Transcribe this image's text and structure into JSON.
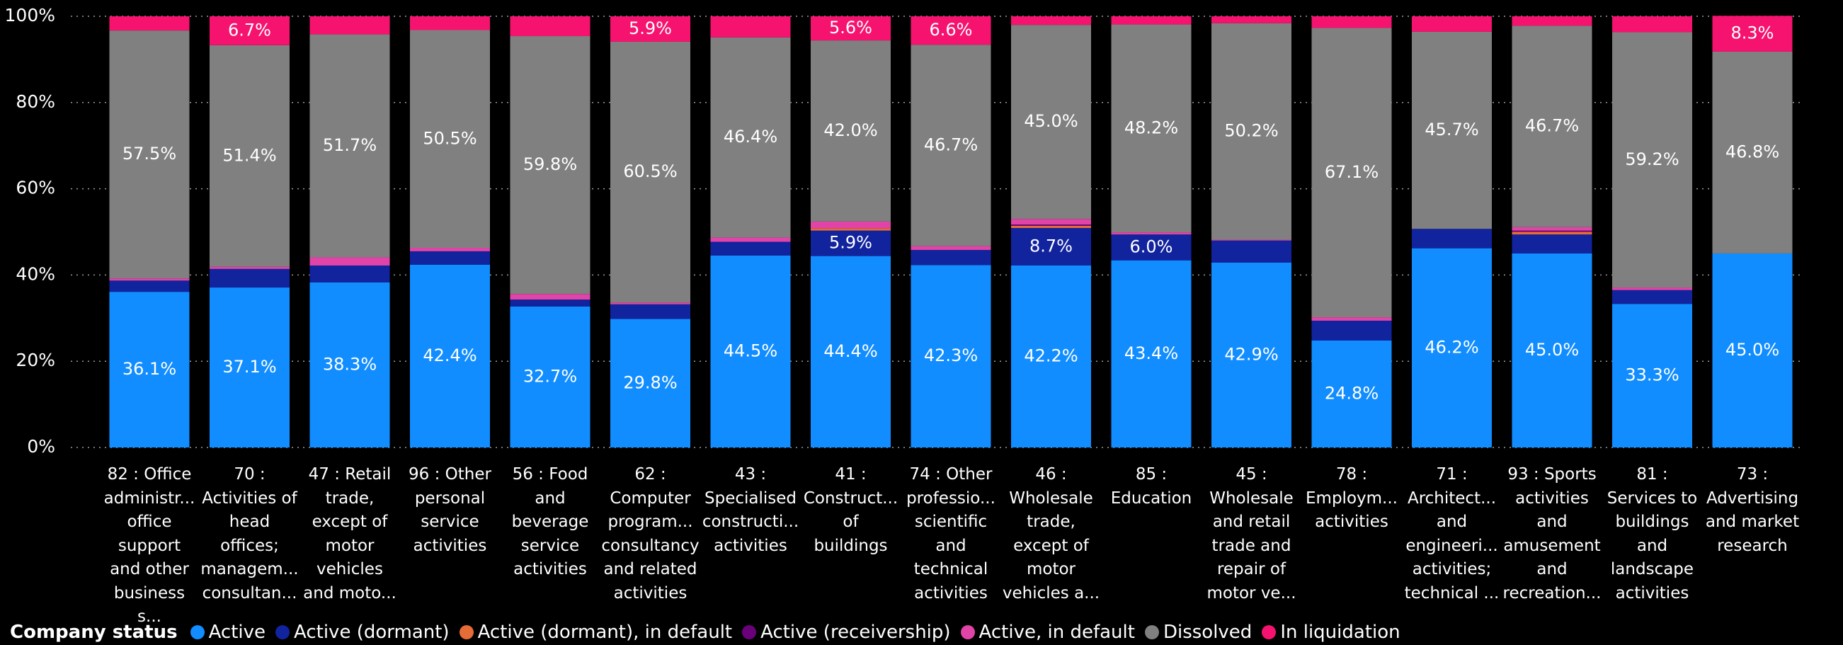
{
  "chart_data": {
    "type": "stacked_bar_100",
    "legend_title": "Company status",
    "legend": "bottom-left",
    "grid": true,
    "categories": [
      "82 : Office\nadministr...\noffice\nsupport\nand other\nbusiness s...",
      "70 :\nActivities of\nhead\noffices;\nmanagem...\nconsultan...",
      "47 : Retail\ntrade,\nexcept of\nmotor\nvehicles\nand moto...",
      "96 : Other\npersonal\nservice\nactivities",
      "56 : Food\nand\nbeverage\nservice\nactivities",
      "62 :\nComputer\nprogram...\nconsultancy\nand related\nactivities",
      "43 :\nSpecialised\nconstructi...\nactivities",
      "41 :\nConstruct...\nof\nbuildings",
      "74 : Other\nprofessio...\nscientific\nand\ntechnical\nactivities",
      "46 :\nWholesale\ntrade,\nexcept of\nmotor\nvehicles a...",
      "85 :\nEducation",
      "45 :\nWholesale\nand retail\ntrade and\nrepair of\nmotor ve...",
      "78 :\nEmploym...\nactivities",
      "71 :\nArchitect...\nand\nengineeri...\nactivities;\ntechnical ...",
      "93 : Sports\nactivities\nand\namusement\nand\nrecreation...",
      "81 :\nServices to\nbuildings\nand\nlandscape\nactivities",
      "73 :\nAdvertising\nand market\nresearch"
    ],
    "ylim": [
      0,
      100
    ],
    "yticks": [
      {
        "value": 0,
        "label": "0%"
      },
      {
        "value": 20,
        "label": "20%"
      },
      {
        "value": 40,
        "label": "40%"
      },
      {
        "value": 60,
        "label": "60%"
      },
      {
        "value": 80,
        "label": "80%"
      },
      {
        "value": 100,
        "label": "100%"
      }
    ],
    "series": [
      {
        "name": "Active",
        "color": "#118DFF",
        "values": [
          36.1,
          37.1,
          38.3,
          42.4,
          32.7,
          29.8,
          44.5,
          44.4,
          42.3,
          42.2,
          43.4,
          42.9,
          24.8,
          46.2,
          45.0,
          33.3,
          45.0
        ],
        "value_labels": [
          "36.1%",
          "37.1%",
          "38.3%",
          "42.4%",
          "32.7%",
          "29.8%",
          "44.5%",
          "44.4%",
          "42.3%",
          "42.2%",
          "43.4%",
          "42.9%",
          "24.8%",
          "46.2%",
          "45.0%",
          "33.3%",
          "45.0%"
        ]
      },
      {
        "name": "Active (dormant)",
        "color": "#12239E",
        "values": [
          2.6,
          4.3,
          3.9,
          3.1,
          1.6,
          3.4,
          3.2,
          5.9,
          3.5,
          8.7,
          6.0,
          5.1,
          4.6,
          4.5,
          4.4,
          3.2,
          0
        ],
        "value_labels": [
          null,
          null,
          null,
          null,
          null,
          null,
          null,
          "5.9%",
          null,
          "8.7%",
          "6.0%",
          null,
          null,
          null,
          null,
          null,
          null
        ]
      },
      {
        "name": "Active (dormant), in default",
        "color": "#E66C37",
        "values": [
          0,
          0,
          0,
          0,
          0,
          0,
          0,
          0.5,
          0,
          0.5,
          0,
          0,
          0,
          0,
          0.6,
          0,
          0
        ]
      },
      {
        "name": "Active (receivership)",
        "color": "#6B007B",
        "values": [
          0,
          0,
          0,
          0,
          0,
          0,
          0,
          0,
          0,
          0.3,
          0,
          0,
          0,
          0,
          0.3,
          0,
          0
        ]
      },
      {
        "name": "Active, in default",
        "color": "#E044A7",
        "values": [
          0.5,
          0.5,
          1.9,
          0.8,
          1.3,
          0.4,
          1.0,
          1.6,
          0.9,
          1.3,
          0.5,
          0.2,
          0.8,
          0,
          0.8,
          0.6,
          0
        ]
      },
      {
        "name": "Dissolved",
        "color": "#808080",
        "values": [
          57.5,
          51.4,
          51.7,
          50.5,
          59.8,
          60.5,
          46.4,
          42.0,
          46.7,
          45.0,
          48.2,
          50.2,
          67.1,
          45.7,
          46.7,
          59.2,
          46.8
        ],
        "value_labels": [
          "57.5%",
          "51.4%",
          "51.7%",
          "50.5%",
          "59.8%",
          "60.5%",
          "46.4%",
          "42.0%",
          "46.7%",
          "45.0%",
          "48.2%",
          "50.2%",
          "67.1%",
          "45.7%",
          "46.7%",
          "59.2%",
          "46.8%"
        ]
      },
      {
        "name": "In liquidation",
        "color": "#F5136F",
        "values": [
          3.3,
          6.7,
          4.2,
          3.2,
          4.6,
          5.9,
          4.9,
          5.6,
          6.6,
          2.0,
          1.9,
          1.6,
          2.7,
          3.6,
          2.2,
          3.7,
          8.3
        ],
        "value_labels": [
          null,
          "6.7%",
          null,
          null,
          null,
          "5.9%",
          null,
          "5.6%",
          "6.6%",
          null,
          null,
          null,
          null,
          null,
          null,
          null,
          "8.3%"
        ]
      }
    ]
  }
}
